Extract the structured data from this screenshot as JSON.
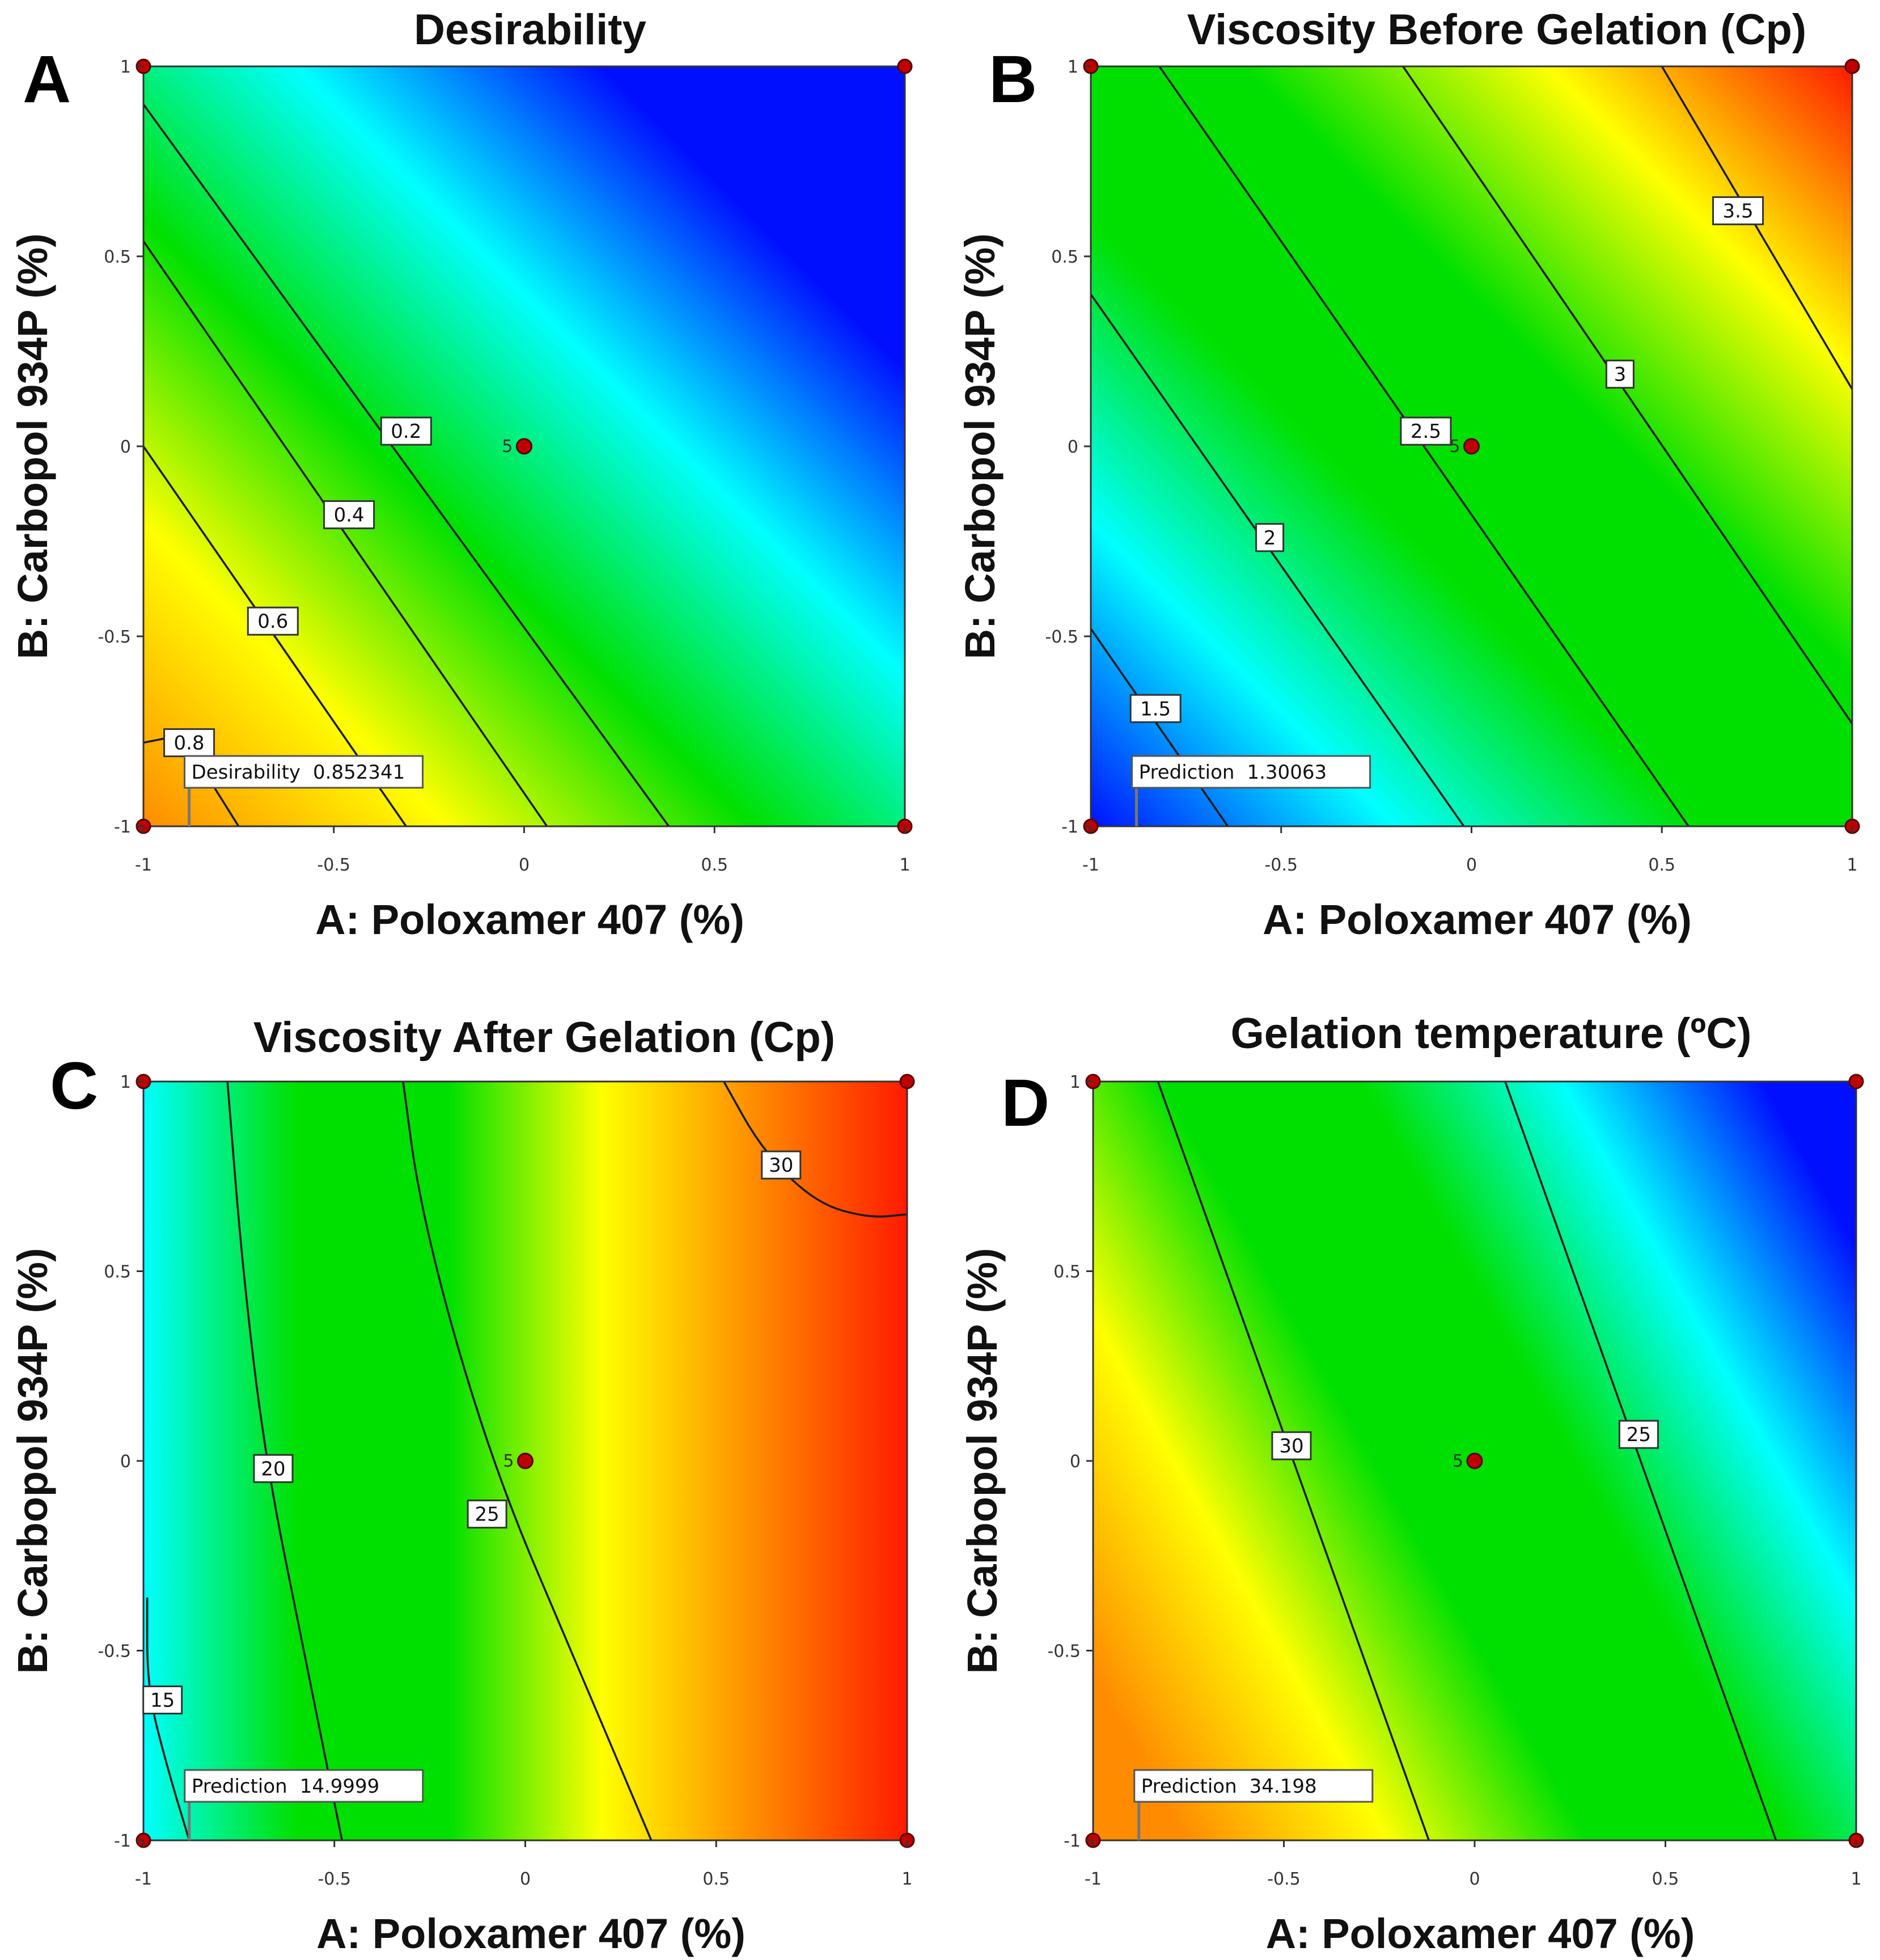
{
  "colors": {
    "blue": "#0010ff",
    "cyan": "#00ffff",
    "green": "#00e000",
    "yellow": "#ffff00",
    "orange": "#ff8c00",
    "red": "#ff1a00",
    "design_point": "#c00000"
  },
  "chart_data": [
    {
      "type": "contour",
      "panel": "A",
      "title": "Desirability",
      "xlabel": "A: Poloxamer 407 (%)",
      "ylabel": "B: Carbopol 934P (%)",
      "xlim": [
        -1,
        1
      ],
      "ylim": [
        -1,
        1
      ],
      "xticks": [
        "-1",
        "-0.5",
        "0",
        "0.5",
        "1"
      ],
      "yticks": [
        "-1",
        "-0.5",
        "0",
        "0.5",
        "1"
      ],
      "gradient": {
        "direction": "diagonal",
        "low_corner": "bottom-left",
        "stops": [
          "#ff8c00",
          "#ffff00",
          "#00e000",
          "#00ffff",
          "#0010ff",
          "#0010ff"
        ]
      },
      "contours": [
        {
          "label": "0.2",
          "points": [
            [
              -1,
              0.9
            ],
            [
              0.38,
              -1
            ]
          ],
          "label_at": [
            -0.31,
            0.04
          ]
        },
        {
          "label": "0.4",
          "points": [
            [
              -1,
              0.54
            ],
            [
              0.06,
              -1
            ]
          ],
          "label_at": [
            -0.46,
            -0.18
          ]
        },
        {
          "label": "0.6",
          "points": [
            [
              -1,
              0.0
            ],
            [
              -0.31,
              -1
            ]
          ],
          "label_at": [
            -0.66,
            -0.46
          ]
        },
        {
          "label": "0.8",
          "points": [
            [
              -1,
              -0.78
            ],
            [
              -0.9,
              -0.76
            ],
            [
              -0.75,
              -1
            ]
          ],
          "label_at": [
            -0.88,
            -0.78
          ]
        }
      ],
      "center_point": {
        "x": 0,
        "y": 0,
        "label": "5"
      },
      "annotation": {
        "label": "Desirability",
        "value": "0.852341",
        "x": -0.88,
        "y": -1
      }
    },
    {
      "type": "contour",
      "panel": "B",
      "title": "Viscosity Before Gelation (Cp)",
      "xlabel": "A: Poloxamer 407 (%)",
      "ylabel": "B: Carbopol 934P (%)",
      "xlim": [
        -1,
        1
      ],
      "ylim": [
        -1,
        1
      ],
      "xticks": [
        "-1",
        "-0.5",
        "0",
        "0.5",
        "1"
      ],
      "yticks": [
        "-1",
        "-0.5",
        "0",
        "0.5",
        "1"
      ],
      "gradient": {
        "direction": "diagonal",
        "low_corner": "bottom-left",
        "stops": [
          "#0010ff",
          "#00ffff",
          "#00e000",
          "#00e000",
          "#ffff00",
          "#ff1a00"
        ]
      },
      "contours": [
        {
          "label": "1.5",
          "points": [
            [
              -1,
              -0.48
            ],
            [
              -0.64,
              -1
            ]
          ],
          "label_at": [
            -0.83,
            -0.69
          ]
        },
        {
          "label": "2",
          "points": [
            [
              -1,
              0.4
            ],
            [
              -0.02,
              -1
            ]
          ],
          "label_at": [
            -0.53,
            -0.24
          ]
        },
        {
          "label": "2.5",
          "points": [
            [
              -0.82,
              1
            ],
            [
              0.57,
              -1
            ]
          ],
          "label_at": [
            -0.12,
            0.04
          ]
        },
        {
          "label": "3",
          "points": [
            [
              -0.18,
              1
            ],
            [
              1,
              -0.73
            ]
          ],
          "label_at": [
            0.39,
            0.19
          ]
        },
        {
          "label": "3.5",
          "points": [
            [
              0.5,
              1
            ],
            [
              1,
              0.15
            ]
          ],
          "label_at": [
            0.7,
            0.62
          ]
        }
      ],
      "center_point": {
        "x": 0,
        "y": 0,
        "label": "5"
      },
      "annotation": {
        "label": "Prediction",
        "value": "1.30063",
        "x": -0.88,
        "y": -1
      }
    },
    {
      "type": "contour",
      "panel": "C",
      "title": "Viscosity After Gelation (Cp)",
      "xlabel": "A: Poloxamer 407 (%)",
      "ylabel": "B: Carbopol 934P (%)",
      "xlim": [
        -1,
        1
      ],
      "ylim": [
        -1,
        1
      ],
      "xticks": [
        "-1",
        "-0.5",
        "0",
        "0.5",
        "1"
      ],
      "yticks": [
        "-1",
        "-0.5",
        "0",
        "0.5",
        "1"
      ],
      "gradient": {
        "direction": "horizontal",
        "low_corner": "left",
        "stops": [
          "#00ffff",
          "#00e000",
          "#00e000",
          "#ffff00",
          "#ff8c00",
          "#ff1a00"
        ]
      },
      "contours": [
        {
          "label": "15",
          "points": [
            [
              -0.99,
              -0.36
            ],
            [
              -0.99,
              -0.6
            ],
            [
              -0.94,
              -0.8
            ],
            [
              -0.88,
              -1
            ]
          ],
          "label_at": [
            -0.95,
            -0.63
          ]
        },
        {
          "label": "20",
          "points": [
            [
              -0.78,
              1
            ],
            [
              -0.74,
              0.5
            ],
            [
              -0.68,
              0.0
            ],
            [
              -0.58,
              -0.5
            ],
            [
              -0.48,
              -1
            ]
          ],
          "label_at": [
            -0.66,
            -0.02
          ]
        },
        {
          "label": "25",
          "points": [
            [
              -0.32,
              1
            ],
            [
              -0.28,
              0.7
            ],
            [
              -0.18,
              0.3
            ],
            [
              -0.05,
              -0.1
            ],
            [
              0.12,
              -0.5
            ],
            [
              0.33,
              -1
            ]
          ],
          "label_at": [
            -0.1,
            -0.14
          ]
        },
        {
          "label": "30",
          "points": [
            [
              0.52,
              1
            ],
            [
              0.62,
              0.82
            ],
            [
              0.76,
              0.68
            ],
            [
              0.9,
              0.64
            ],
            [
              1,
              0.65
            ]
          ],
          "label_at": [
            0.67,
            0.78
          ]
        }
      ],
      "center_point": {
        "x": 0,
        "y": 0,
        "label": "5"
      },
      "annotation": {
        "label": "Prediction",
        "value": "14.9999",
        "x": -0.88,
        "y": -1
      }
    },
    {
      "type": "contour",
      "panel": "D",
      "title": "Gelation temperature (ºC)",
      "xlabel": "A: Poloxamer 407 (%)",
      "ylabel": "B: Carbopol 934P (%)",
      "xlim": [
        -1,
        1
      ],
      "ylim": [
        -1,
        1
      ],
      "xticks": [
        "-1",
        "-0.5",
        "0",
        "0.5",
        "1"
      ],
      "yticks": [
        "-1",
        "-0.5",
        "0",
        "0.5",
        "1"
      ],
      "gradient": {
        "direction": "diagonal-shallow",
        "low_corner": "bottom-left",
        "stops": [
          "#ff8c00",
          "#ffff00",
          "#00e000",
          "#00e000",
          "#00ffff",
          "#0010ff"
        ]
      },
      "contours": [
        {
          "label": "30",
          "points": [
            [
              -0.83,
              1
            ],
            [
              -0.12,
              -1
            ]
          ],
          "label_at": [
            -0.48,
            0.04
          ]
        },
        {
          "label": "25",
          "points": [
            [
              0.08,
              1
            ],
            [
              0.79,
              -1
            ]
          ],
          "label_at": [
            0.43,
            0.07
          ]
        }
      ],
      "center_point": {
        "x": 0,
        "y": 0,
        "label": "5"
      },
      "annotation": {
        "label": "Prediction",
        "value": "34.198",
        "x": -0.88,
        "y": -1
      }
    }
  ]
}
